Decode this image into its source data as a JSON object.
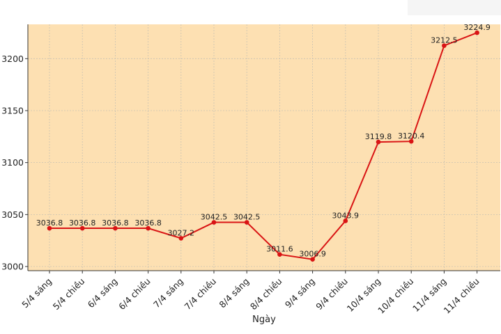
{
  "chart_data": {
    "type": "line",
    "title": "",
    "xlabel": "Ngày",
    "ylabel": "",
    "categories": [
      "5/4 sáng",
      "5/4 chiều",
      "6/4 sáng",
      "6/4 chiều",
      "7/4 sáng",
      "7/4 chiều",
      "8/4 sáng",
      "8/4 chiều",
      "9/4 sáng",
      "9/4 chiều",
      "10/4 sáng",
      "10/4 chiều",
      "11/4 sáng",
      "11/4 chiều"
    ],
    "series": [
      {
        "values": [
          3036.8,
          3036.8,
          3036.8,
          3036.8,
          3027.2,
          3042.5,
          3042.5,
          3011.6,
          3006.9,
          3043.9,
          3119.8,
          3120.4,
          3212.5,
          3224.9
        ],
        "labels": [
          "3036.8",
          "3036.8",
          "3036.8",
          "3036.8",
          "3027.2",
          "3042.5",
          "3042.5",
          "3011.6",
          "3006.9",
          "3043.9",
          "3119.8",
          "3120.4",
          "3212.5",
          "3224.9"
        ]
      }
    ],
    "yticks": [
      "3000",
      "3050",
      "3100",
      "3150",
      "3200"
    ],
    "ytick_values": [
      3000,
      3050,
      3100,
      3150,
      3200
    ],
    "ylim": [
      2996,
      3233
    ],
    "grid": true,
    "legend": "none",
    "colors": {
      "line": "#d91414",
      "background": "#fde0b2",
      "grid": "#c9c2b2"
    }
  }
}
